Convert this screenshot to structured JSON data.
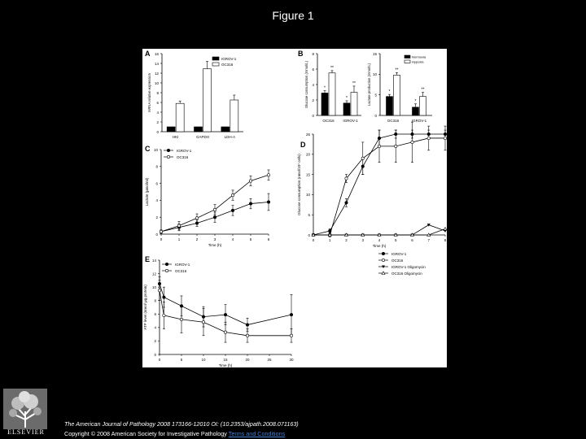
{
  "slide": {
    "title": "Figure 1"
  },
  "footer": {
    "citation": "The American Journal of Pathology 2008 173166-12010 OI: (10.2353/ajpath.2008.071163)",
    "copyright_prefix": "Copyright © 2008 American Society for Investigative Pathology ",
    "terms_link": "Terms and Conditions"
  },
  "logo": {
    "name": "ELSEVIER",
    "icon": "tree-logo-icon"
  },
  "colors": {
    "background": "#000000",
    "panel": "#ffffff",
    "ink": "#000000",
    "link": "#4a7fd4"
  },
  "chart_data": [
    {
      "panel": "A",
      "type": "bar",
      "categories": [
        "HKI",
        "GAPDH",
        "LDH-A"
      ],
      "ylabel": "mRNA relative expression",
      "ylim": [
        0,
        16
      ],
      "yticks": [
        0,
        2,
        4,
        6,
        8,
        10,
        12,
        14,
        16
      ],
      "series": [
        {
          "name": "IGROV-1",
          "fill": "#000000",
          "values": [
            1,
            1,
            1
          ],
          "errors": [
            0,
            0,
            0
          ]
        },
        {
          "name": "OC316",
          "fill": "#ffffff",
          "values": [
            5.8,
            12.9,
            6.5
          ],
          "errors": [
            0.5,
            1.5,
            1.0
          ]
        }
      ],
      "annotations": []
    },
    {
      "panel": "B",
      "type": "bar",
      "subpanels": [
        {
          "categories": [
            "OC316",
            "IGROV-1"
          ],
          "ylabel": "Glucose consumption (mmol/L)",
          "ylim": [
            0,
            8
          ],
          "yticks": [
            0,
            2,
            4,
            6,
            8
          ],
          "series": [
            {
              "name": "Normoxia",
              "fill": "#000000",
              "values": [
                2.9,
                1.6
              ],
              "errors": [
                0.3,
                0.3
              ]
            },
            {
              "name": "Hypoxia",
              "fill": "#ffffff",
              "values": [
                5.5,
                3.0
              ],
              "errors": [
                0.3,
                0.8
              ]
            }
          ],
          "annotations": [
            "*",
            "**"
          ]
        },
        {
          "categories": [
            "OC316",
            "IGROV-1"
          ],
          "ylabel": "Lactate production (mmol/L)",
          "ylim": [
            0,
            15
          ],
          "yticks": [
            0,
            5,
            10,
            15
          ],
          "series": [
            {
              "name": "Normoxia",
              "fill": "#000000",
              "values": [
                4.6,
                2.0
              ],
              "errors": [
                0.5,
                0.8
              ]
            },
            {
              "name": "Hypoxia",
              "fill": "#ffffff",
              "values": [
                9.8,
                4.6
              ],
              "errors": [
                0.6,
                1.0
              ]
            }
          ],
          "annotations": [
            "*",
            "**"
          ]
        }
      ]
    },
    {
      "panel": "C",
      "type": "line",
      "xlabel": "Time (h)",
      "ylabel": "Lactate (µmol/ml)",
      "xlim": [
        0,
        6
      ],
      "ylim": [
        0,
        10
      ],
      "xticks": [
        0,
        1,
        2,
        3,
        4,
        5,
        6
      ],
      "yticks": [
        0,
        2,
        4,
        6,
        8,
        10
      ],
      "series": [
        {
          "name": "IGROV-1",
          "marker": "filled",
          "x": [
            0,
            1,
            2,
            3,
            4,
            5,
            6
          ],
          "y": [
            0.3,
            0.8,
            1.3,
            2.0,
            2.8,
            3.6,
            3.8
          ],
          "errors": [
            0.2,
            0.4,
            0.4,
            0.6,
            0.6,
            0.6,
            1.0
          ]
        },
        {
          "name": "OC316",
          "marker": "open",
          "x": [
            0,
            1,
            2,
            3,
            4,
            5,
            6
          ],
          "y": [
            0.3,
            1.0,
            1.9,
            2.9,
            4.6,
            6.3,
            7.0
          ],
          "errors": [
            0.2,
            0.5,
            0.5,
            0.6,
            0.6,
            0.6,
            0.6
          ]
        }
      ]
    },
    {
      "panel": "D",
      "type": "line",
      "xlabel": "Time (h)",
      "ylabel": "Glucose consumption (nmol/10⁶ cells)",
      "xlim": [
        0,
        8
      ],
      "ylim": [
        0,
        25
      ],
      "xticks": [
        0,
        1,
        2,
        3,
        4,
        5,
        6,
        7,
        8
      ],
      "yticks": [
        0,
        5,
        10,
        15,
        20,
        25
      ],
      "series": [
        {
          "name": "IGROV-1",
          "marker": "filled",
          "x": [
            0,
            1,
            2,
            3,
            4,
            5,
            6,
            7,
            8
          ],
          "y": [
            0,
            1,
            8,
            17,
            24,
            25,
            25,
            25,
            25
          ],
          "errors": [
            0,
            0.5,
            1,
            2,
            2,
            1,
            1,
            1,
            1
          ]
        },
        {
          "name": "OC316",
          "marker": "open",
          "x": [
            0,
            1,
            2,
            3,
            4,
            5,
            6,
            7,
            8
          ],
          "y": [
            0,
            0,
            14,
            19,
            22,
            22,
            23,
            24,
            24
          ],
          "errors": [
            0,
            0.5,
            1,
            4,
            4,
            4,
            5,
            3,
            3
          ]
        },
        {
          "name": "IGROV-1 Oligomycin",
          "marker": "filled-triangle",
          "x": [
            0,
            1,
            2,
            3,
            4,
            5,
            6,
            7,
            8
          ],
          "y": [
            0,
            0,
            0,
            0,
            0,
            0,
            0,
            2.5,
            1
          ],
          "errors": [
            0,
            0,
            0,
            0,
            0,
            0,
            0,
            0,
            0
          ]
        },
        {
          "name": "OC316 Oligomycin",
          "marker": "open-triangle",
          "x": [
            0,
            1,
            2,
            3,
            4,
            5,
            6,
            7,
            8
          ],
          "y": [
            0,
            0,
            0,
            0,
            0,
            0,
            0,
            0,
            1.5
          ],
          "errors": [
            0,
            0,
            0,
            0,
            0,
            0,
            0,
            0,
            0
          ]
        }
      ]
    },
    {
      "panel": "E",
      "type": "line",
      "xlabel": "Time (h)",
      "ylabel": "ATP level (nmol/ µg protein)",
      "xlim": [
        0,
        30
      ],
      "ylim": [
        0,
        14
      ],
      "xticks": [
        0,
        5,
        10,
        15,
        20,
        25,
        30
      ],
      "yticks": [
        0,
        2,
        4,
        6,
        8,
        10,
        12,
        14
      ],
      "series": [
        {
          "name": "IGROV-1",
          "marker": "filled",
          "x": [
            0,
            1,
            5,
            10,
            15,
            20,
            30
          ],
          "y": [
            10.5,
            8.5,
            7.2,
            5.6,
            5.9,
            4.4,
            5.9
          ],
          "errors": [
            1,
            1.5,
            1.5,
            1.5,
            1.5,
            1,
            3
          ]
        },
        {
          "name": "OC316",
          "marker": "open",
          "x": [
            0,
            1,
            5,
            10,
            15,
            20,
            30
          ],
          "y": [
            9.5,
            5.8,
            5.2,
            4.8,
            3.3,
            2.8,
            2.8
          ],
          "errors": [
            1.5,
            2,
            2,
            2,
            1.5,
            1,
            1
          ]
        }
      ]
    }
  ]
}
